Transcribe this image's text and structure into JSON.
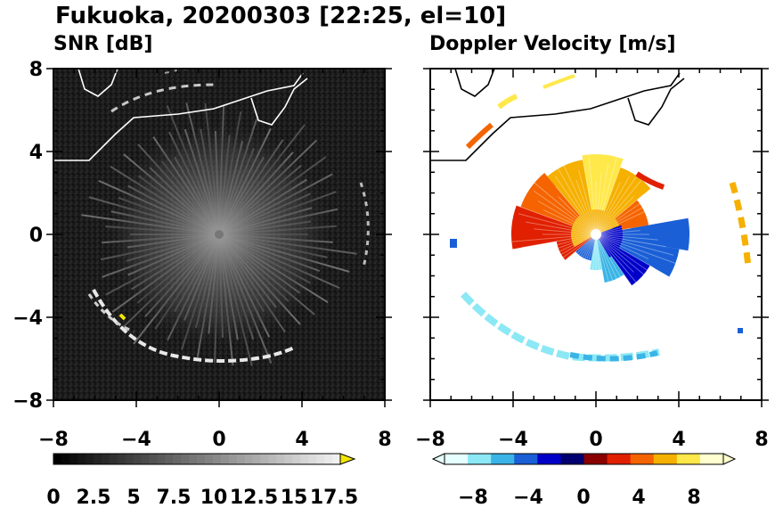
{
  "figure": {
    "title": "Fukuoka, 20200303 [22:25, el=10]"
  },
  "chart_data": [
    {
      "type": "heatmap",
      "panel": "snr",
      "title": "SNR [dB]",
      "xlim": [
        -8,
        8
      ],
      "ylim": [
        -8,
        8
      ],
      "xticks": [
        "−8",
        "−4",
        "0",
        "4",
        "8"
      ],
      "yticks": [
        "8",
        "4",
        "0",
        "−4",
        "−8"
      ],
      "colorbar": {
        "range": [
          0,
          18
        ],
        "labels": [
          "0",
          "2.5",
          "5",
          "7.5",
          "10",
          "12.5",
          "15",
          "17.5"
        ],
        "colors": [
          "#000000",
          "#ffffff"
        ],
        "extend": "max",
        "extend_color": "#f2e600"
      },
      "background_color": "#1e1e1e"
    },
    {
      "type": "heatmap",
      "panel": "doppler",
      "title": "Doppler Velocity [m/s]",
      "xlim": [
        -8,
        8
      ],
      "ylim": [
        -8,
        8
      ],
      "xticks": [
        "−8",
        "−4",
        "0",
        "4",
        "8"
      ],
      "yticks": [
        "8",
        "4",
        "0",
        "−4",
        "−8"
      ],
      "colorbar": {
        "range": [
          -10,
          10
        ],
        "labels": [
          "−8",
          "−4",
          "0",
          "4",
          "8"
        ],
        "extend": "both",
        "colors_negative": [
          "#e6ffff",
          "#8ce8f5",
          "#3ab4e6",
          "#1a5fd6",
          "#0000c8",
          "#000070"
        ],
        "colors_positive": [
          "#8a0000",
          "#e02000",
          "#f56400",
          "#f5b000",
          "#ffe84a",
          "#ffffd0"
        ]
      },
      "background_color": "#ffffff"
    }
  ]
}
